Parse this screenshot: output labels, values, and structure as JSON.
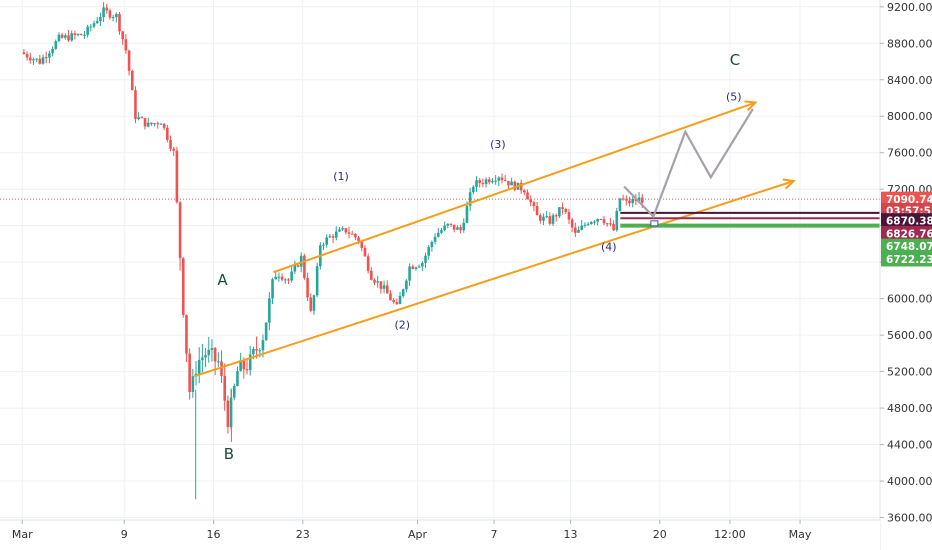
{
  "chart_data": {
    "type": "candlestick",
    "y_range": [
      3500,
      9300
    ],
    "y_ticks": [
      "9200.00",
      "8800.00",
      "8400.00",
      "8000.00",
      "7600.00",
      "7200.00",
      "6800.00",
      "6400.00",
      "6000.00",
      "5600.00",
      "5200.00",
      "4800.00",
      "4400.00",
      "4000.00",
      "3600.00"
    ],
    "x_ticks": [
      {
        "label": "Mar",
        "day": 0
      },
      {
        "label": "9",
        "day": 8
      },
      {
        "label": "16",
        "day": 15
      },
      {
        "label": "23",
        "day": 22
      },
      {
        "label": "Apr",
        "day": 31
      },
      {
        "label": "7",
        "day": 37
      },
      {
        "label": "13",
        "day": 43
      },
      {
        "label": "20",
        "day": 50
      },
      {
        "label": "12:00",
        "day": 55.5
      },
      {
        "label": "May",
        "day": 61
      }
    ],
    "grid": true,
    "price_anchors": [
      {
        "day": 0,
        "price": 8700
      },
      {
        "day": 1.5,
        "price": 8600
      },
      {
        "day": 3,
        "price": 8850
      },
      {
        "day": 5,
        "price": 8900
      },
      {
        "day": 6.5,
        "price": 9150
      },
      {
        "day": 7.5,
        "price": 9100
      },
      {
        "day": 8.3,
        "price": 8700
      },
      {
        "day": 9,
        "price": 8000
      },
      {
        "day": 10,
        "price": 7900
      },
      {
        "day": 11,
        "price": 7950
      },
      {
        "day": 12,
        "price": 7600
      },
      {
        "day": 12.8,
        "price": 5800
      },
      {
        "day": 13.3,
        "price": 4900
      },
      {
        "day": 13.8,
        "price": 5300
      },
      {
        "day": 14.5,
        "price": 5400
      },
      {
        "day": 15.5,
        "price": 5300
      },
      {
        "day": 16.3,
        "price": 4650
      },
      {
        "day": 17,
        "price": 5200
      },
      {
        "day": 18,
        "price": 5300
      },
      {
        "day": 19,
        "price": 5600
      },
      {
        "day": 20,
        "price": 6300
      },
      {
        "day": 21,
        "price": 6200
      },
      {
        "day": 22,
        "price": 6450
      },
      {
        "day": 22.8,
        "price": 5800
      },
      {
        "day": 23.5,
        "price": 6600
      },
      {
        "day": 24.5,
        "price": 6700
      },
      {
        "day": 25.5,
        "price": 6750
      },
      {
        "day": 26.5,
        "price": 6650
      },
      {
        "day": 27.5,
        "price": 6250
      },
      {
        "day": 28.5,
        "price": 6100
      },
      {
        "day": 29.5,
        "price": 5900
      },
      {
        "day": 30.5,
        "price": 6350
      },
      {
        "day": 31.5,
        "price": 6400
      },
      {
        "day": 32.5,
        "price": 6700
      },
      {
        "day": 33.5,
        "price": 6800
      },
      {
        "day": 34.5,
        "price": 6750
      },
      {
        "day": 35.5,
        "price": 7250
      },
      {
        "day": 36.5,
        "price": 7300
      },
      {
        "day": 37.5,
        "price": 7350
      },
      {
        "day": 38.5,
        "price": 7250
      },
      {
        "day": 39.5,
        "price": 7200
      },
      {
        "day": 40.5,
        "price": 6900
      },
      {
        "day": 41.5,
        "price": 6850
      },
      {
        "day": 42.5,
        "price": 7000
      },
      {
        "day": 43.5,
        "price": 6700
      },
      {
        "day": 44.5,
        "price": 6850
      },
      {
        "day": 45.5,
        "price": 6900
      },
      {
        "day": 46.5,
        "price": 6750
      },
      {
        "day": 47,
        "price": 7100
      },
      {
        "day": 47.5,
        "price": 7050
      },
      {
        "day": 48.5,
        "price": 7090
      }
    ],
    "channel": {
      "upper": [
        {
          "day": 19.7,
          "price": 6290
        },
        {
          "day": 57.5,
          "price": 8150
        }
      ],
      "lower": [
        {
          "day": 13.5,
          "price": 5150
        },
        {
          "day": 60.5,
          "price": 7290
        }
      ],
      "color": "#f59e1b"
    },
    "projection": [
      {
        "day": 47.2,
        "price": 7230
      },
      {
        "day": 49.5,
        "price": 6900
      },
      {
        "day": 52,
        "price": 7830
      },
      {
        "day": 54,
        "price": 7330
      },
      {
        "day": 57.3,
        "price": 8080
      }
    ],
    "levels": [
      {
        "price": 6940,
        "color": "#4a1338"
      },
      {
        "price": 6882,
        "color": "#9e2a4e"
      },
      {
        "price": 6800,
        "color": "#4caf50"
      }
    ],
    "current_price": 7090.74,
    "wave_labels": [
      {
        "text": "(1)",
        "day": 25,
        "price": 7300
      },
      {
        "text": "(2)",
        "day": 29.8,
        "price": 5670
      },
      {
        "text": "(3)",
        "day": 37.3,
        "price": 7650
      },
      {
        "text": "(4)",
        "day": 46,
        "price": 6530
      },
      {
        "text": "(5)",
        "day": 55.8,
        "price": 8170
      }
    ],
    "big_labels": [
      {
        "text": "A",
        "day": 15.7,
        "price": 6150
      },
      {
        "text": "B",
        "day": 16.2,
        "price": 4240
      },
      {
        "text": "C",
        "day": 55.9,
        "price": 8560
      }
    ],
    "price_tags": [
      {
        "text": "7090.74",
        "price": 7090.74,
        "color": "#ef5350"
      },
      {
        "text": "03:57:53",
        "price": 6965,
        "color": "#d0454e"
      },
      {
        "text": "6870.38",
        "price": 6855,
        "color": "#4a1338"
      },
      {
        "text": "6826.76",
        "price": 6715,
        "color": "#9e2a4e"
      },
      {
        "text": "6748.07",
        "price": 6575,
        "color": "#4caf50"
      },
      {
        "text": "6722.23",
        "price": 6435,
        "color": "#4caf50"
      }
    ]
  }
}
